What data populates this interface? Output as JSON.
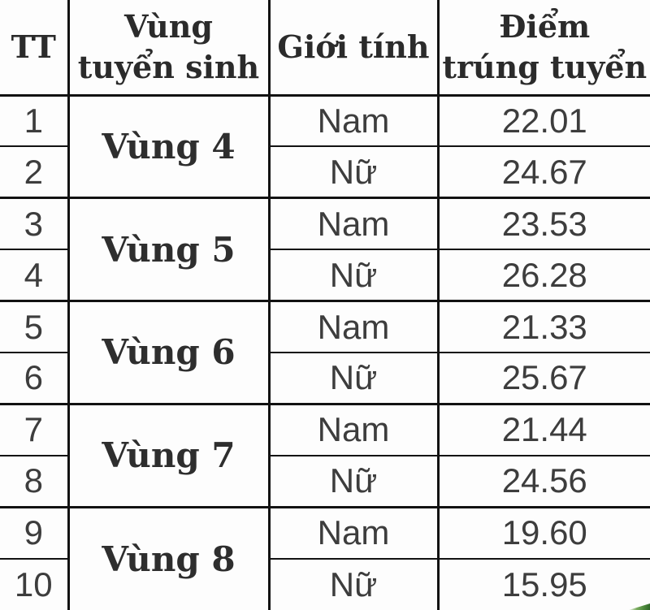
{
  "chart_data": {
    "type": "table",
    "title": "",
    "columns": [
      {
        "label": "TT",
        "lines": [
          "TT"
        ]
      },
      {
        "label": "Vùng tuyển sinh",
        "lines": [
          "Vùng",
          "tuyển sinh"
        ]
      },
      {
        "label": "Giới tính",
        "lines": [
          "Giới tính"
        ]
      },
      {
        "label": "Điểm trúng tuyển",
        "lines": [
          "Điểm",
          "trúng tuyển"
        ]
      }
    ],
    "groups": [
      {
        "region": "Vùng 4",
        "rows": [
          {
            "tt": "1",
            "gender": "Nam",
            "score": "22.01"
          },
          {
            "tt": "2",
            "gender": "Nữ",
            "score": "24.67"
          }
        ]
      },
      {
        "region": "Vùng 5",
        "rows": [
          {
            "tt": "3",
            "gender": "Nam",
            "score": "23.53"
          },
          {
            "tt": "4",
            "gender": "Nữ",
            "score": "26.28"
          }
        ]
      },
      {
        "region": "Vùng 6",
        "rows": [
          {
            "tt": "5",
            "gender": "Nam",
            "score": "21.33"
          },
          {
            "tt": "6",
            "gender": "Nữ",
            "score": "25.67"
          }
        ]
      },
      {
        "region": "Vùng 7",
        "rows": [
          {
            "tt": "7",
            "gender": "Nam",
            "score": "21.44"
          },
          {
            "tt": "8",
            "gender": "Nữ",
            "score": "24.56"
          }
        ]
      },
      {
        "region": "Vùng 8",
        "rows": [
          {
            "tt": "9",
            "gender": "Nam",
            "score": "19.60"
          },
          {
            "tt": "10",
            "gender": "Nữ",
            "score": "15.95"
          }
        ]
      }
    ]
  },
  "colors": {
    "border": "#121212",
    "header_text": "#2b2b2b",
    "data_text": "#3d3d3d",
    "background": "#fdfdfd",
    "corner_fragment_green": "#4d8a3c"
  },
  "decor": {
    "corner_fragment": "green-leaf-fragment"
  }
}
